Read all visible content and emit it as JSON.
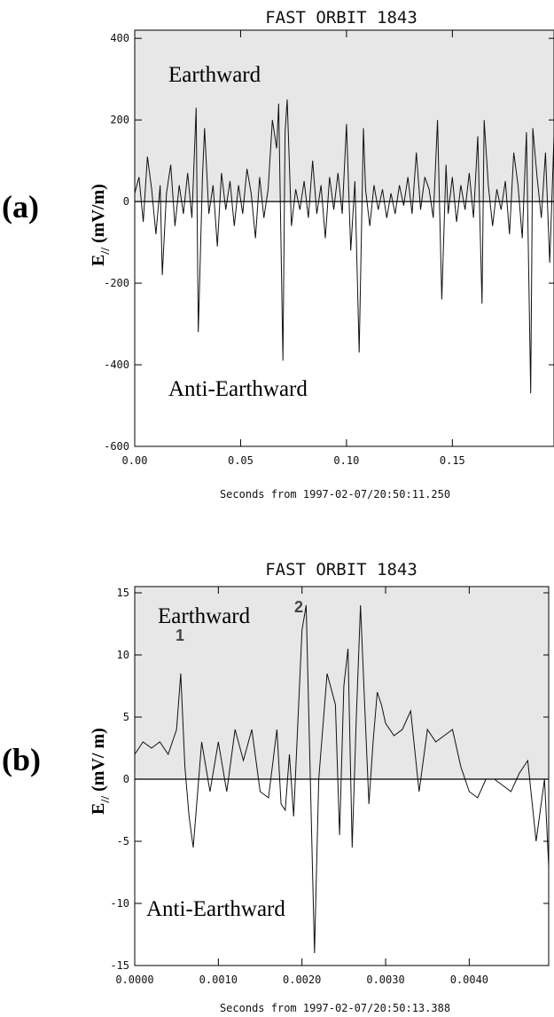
{
  "chart_data": [
    {
      "type": "line",
      "panel_label": "(a)",
      "title": "FAST ORBIT 1843",
      "xlabel": "Seconds from 1997-02-07/20:50:11.250",
      "ylabel_main": "E",
      "ylabel_sub": "//",
      "ylabel_unit": " (mV/m)",
      "xlim": [
        0,
        0.198
      ],
      "ylim": [
        -600,
        420
      ],
      "xticks": [
        0,
        0.05,
        0.1,
        0.15
      ],
      "xtick_labels": [
        "0.00",
        "0.05",
        "0.10",
        "0.15"
      ],
      "yticks": [
        400,
        200,
        0,
        -200,
        -400,
        -600
      ],
      "ytick_labels": [
        "400",
        "200",
        "0",
        "-200",
        "-400",
        "-600"
      ],
      "region_labels": {
        "upper": "Earthward",
        "lower": "Anti-Earthward"
      },
      "shaded_region": "above zero",
      "grid": false,
      "series": [
        {
          "x": [
            0,
            0.002,
            0.004,
            0.006,
            0.008,
            0.01,
            0.012,
            0.013,
            0.015,
            0.017,
            0.019,
            0.021,
            0.023,
            0.025,
            0.027,
            0.029,
            0.03,
            0.032,
            0.033,
            0.035,
            0.037,
            0.039,
            0.041,
            0.043,
            0.045,
            0.047,
            0.049,
            0.051,
            0.053,
            0.055,
            0.057,
            0.059,
            0.061,
            0.063,
            0.065,
            0.067,
            0.068,
            0.07,
            0.071,
            0.072,
            0.074,
            0.076,
            0.078,
            0.08,
            0.082,
            0.084,
            0.086,
            0.088,
            0.09,
            0.092,
            0.094,
            0.096,
            0.098,
            0.1,
            0.102,
            0.104,
            0.106,
            0.108,
            0.109,
            0.111,
            0.113,
            0.115,
            0.117,
            0.119,
            0.121,
            0.123,
            0.125,
            0.127,
            0.129,
            0.131,
            0.133,
            0.135,
            0.137,
            0.139,
            0.141,
            0.143,
            0.145,
            0.147,
            0.148,
            0.15,
            0.152,
            0.154,
            0.156,
            0.158,
            0.16,
            0.162,
            0.164,
            0.165,
            0.167,
            0.169,
            0.171,
            0.173,
            0.175,
            0.177,
            0.179,
            0.181,
            0.183,
            0.185,
            0.187,
            0.188,
            0.19,
            0.192,
            0.194,
            0.196,
            0.198
          ],
          "y": [
            20,
            60,
            -50,
            110,
            30,
            -80,
            40,
            -180,
            20,
            90,
            -60,
            40,
            -30,
            70,
            -40,
            230,
            -320,
            60,
            180,
            -30,
            40,
            -110,
            70,
            -20,
            50,
            -60,
            40,
            -30,
            80,
            20,
            -90,
            60,
            -40,
            30,
            200,
            130,
            240,
            -390,
            170,
            250,
            -60,
            30,
            -20,
            50,
            -40,
            100,
            -30,
            40,
            -90,
            60,
            -20,
            70,
            -30,
            190,
            -120,
            50,
            -370,
            180,
            30,
            -60,
            40,
            -20,
            30,
            -40,
            20,
            -30,
            40,
            -10,
            60,
            -30,
            120,
            -20,
            60,
            30,
            -40,
            200,
            -240,
            90,
            -30,
            60,
            -50,
            40,
            -20,
            70,
            -40,
            160,
            -250,
            200,
            40,
            -60,
            30,
            -20,
            50,
            -80,
            120,
            40,
            -90,
            170,
            -470,
            180,
            60,
            -40,
            120,
            -150,
            160
          ]
        }
      ]
    },
    {
      "type": "line",
      "panel_label": "(b)",
      "title": "FAST ORBIT 1843",
      "xlabel": "Seconds from 1997-02-07/20:50:13.388",
      "ylabel_main": "E",
      "ylabel_sub": "//",
      "ylabel_unit": " (mV/ m)",
      "xlim": [
        0,
        0.00495
      ],
      "ylim": [
        -15,
        15.5
      ],
      "xticks": [
        0,
        0.001,
        0.002,
        0.003,
        0.004
      ],
      "xtick_labels": [
        "0.0000",
        "0.0010",
        "0.0020",
        "0.0030",
        "0.0040"
      ],
      "yticks": [
        15,
        10,
        5,
        0,
        -5,
        -10,
        -15
      ],
      "ytick_labels": [
        "15",
        "10",
        "5",
        "0",
        "-5",
        "-10",
        "-15"
      ],
      "region_labels": {
        "upper": "Earthward",
        "lower": "Anti-Earthward"
      },
      "shaded_region": "above zero",
      "grid": false,
      "annotations": [
        {
          "text": "1",
          "x": 0.00055,
          "y": 9.8
        },
        {
          "text": "2",
          "x": 0.00188,
          "y": 14.0
        }
      ],
      "series": [
        {
          "x": [
            0,
            0.0001,
            0.0002,
            0.0003,
            0.0004,
            0.0005,
            0.00055,
            0.0006,
            0.00065,
            0.0007,
            0.0008,
            0.0009,
            0.001,
            0.0011,
            0.0012,
            0.0013,
            0.0014,
            0.0015,
            0.0016,
            0.0017,
            0.00175,
            0.0018,
            0.00185,
            0.0019,
            0.002,
            0.00205,
            0.0021,
            0.00215,
            0.0022,
            0.0023,
            0.0024,
            0.00245,
            0.0025,
            0.00255,
            0.0026,
            0.00265,
            0.0027,
            0.00275,
            0.0028,
            0.00285,
            0.0029,
            0.00295,
            0.003,
            0.0031,
            0.0032,
            0.0033,
            0.0034,
            0.0035,
            0.0036,
            0.0037,
            0.0038,
            0.0039,
            0.004,
            0.0041,
            0.0042,
            0.0043,
            0.0044,
            0.0045,
            0.0046,
            0.0047,
            0.0048,
            0.0049,
            0.00495
          ],
          "y": [
            2,
            3,
            2.5,
            3,
            2,
            4,
            8.5,
            1,
            -3,
            -5.5,
            3,
            -1,
            3,
            -1,
            4,
            1.5,
            4,
            -1,
            -1.5,
            4,
            -2,
            -2.5,
            2,
            -3,
            12,
            14,
            0,
            -14,
            0,
            8.5,
            6,
            -4.5,
            7.5,
            10.5,
            -5.5,
            5,
            14,
            6,
            -2,
            3,
            7,
            6,
            4.5,
            3.5,
            4,
            5.5,
            -1,
            4,
            3,
            3.5,
            4,
            1,
            -1,
            -1.5,
            0,
            0,
            -0.5,
            -1,
            0.5,
            1.5,
            -5,
            0,
            -7
          ]
        }
      ]
    }
  ]
}
